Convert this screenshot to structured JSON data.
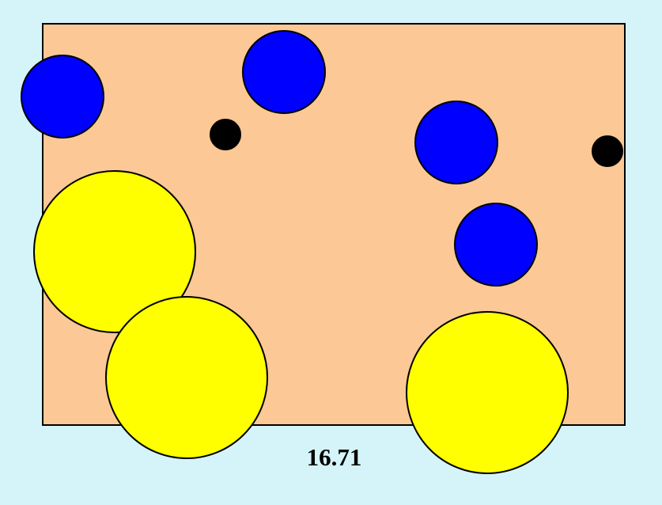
{
  "caption": "16.71",
  "colors": {
    "background": "#d4f4fa",
    "panel_fill": "#fbc896",
    "blue": "#0000ff",
    "yellow": "#ffff00",
    "black": "#000000"
  },
  "shapes": [
    {
      "kind": "blue-circle",
      "color": "blue"
    },
    {
      "kind": "blue-circle",
      "color": "blue"
    },
    {
      "kind": "blue-circle",
      "color": "blue"
    },
    {
      "kind": "blue-circle",
      "color": "blue"
    },
    {
      "kind": "black-dot",
      "color": "black"
    },
    {
      "kind": "black-dot",
      "color": "black"
    },
    {
      "kind": "yellow-circle",
      "color": "yellow"
    },
    {
      "kind": "yellow-circle",
      "color": "yellow"
    },
    {
      "kind": "yellow-circle",
      "color": "yellow"
    }
  ]
}
